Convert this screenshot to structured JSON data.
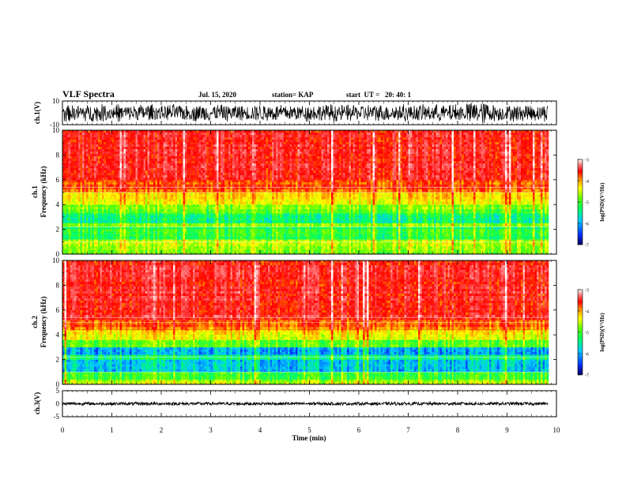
{
  "header": {
    "title": "VLF Spectra",
    "date": "Jul. 15, 2020",
    "station": "station= KAP",
    "start": "start  UT =   20: 40: 1"
  },
  "colors": {
    "colormap": [
      "#ffffff",
      "#ff7070",
      "#ff0000",
      "#ff9900",
      "#ffff00",
      "#66ff00",
      "#00ff66",
      "#00c8ff",
      "#0040ff",
      "#000080"
    ],
    "axis": "#000000"
  },
  "chart_data": [
    {
      "type": "line",
      "panel": "ch1-waveform",
      "ylabel": "ch.1(V)",
      "ylim": [
        -10,
        10
      ],
      "yticks": [
        "10",
        "-10"
      ],
      "xlim": [
        0,
        10
      ],
      "series": [
        {
          "values": "dense noise filling most of -10..10 V over 0-9.8 min"
        }
      ]
    },
    {
      "type": "heatmap",
      "panel": "ch1-spectrogram",
      "ylabel_top": "ch.1",
      "ylabel": "Frequency (kHz)",
      "ylim": [
        0,
        10
      ],
      "yticks": [
        "0",
        "2",
        "4",
        "6",
        "8",
        "10"
      ],
      "xlim": [
        0,
        10
      ],
      "data_extent_min": 9.83,
      "bands": [
        {
          "f0": 0.0,
          "f1": 0.35,
          "level": 0.55
        },
        {
          "f0": 0.35,
          "f1": 1.2,
          "level": 0.5
        },
        {
          "f0": 1.2,
          "f1": 2.2,
          "level": 0.62
        },
        {
          "f0": 2.2,
          "f1": 2.5,
          "level": 0.55
        },
        {
          "f0": 2.5,
          "f1": 3.3,
          "level": 0.68
        },
        {
          "f0": 3.3,
          "f1": 4.0,
          "level": 0.55
        },
        {
          "f0": 4.0,
          "f1": 5.0,
          "level": 0.42
        },
        {
          "f0": 5.0,
          "f1": 6.0,
          "level": 0.28
        },
        {
          "f0": 6.0,
          "f1": 10.0,
          "level": 0.2
        }
      ],
      "colorbar": {
        "label": "log(PSD)(V²/Hz)",
        "ticks": [
          "-3",
          "-4",
          "-5",
          "-6",
          "-7"
        ],
        "range": [
          -7,
          -3
        ]
      }
    },
    {
      "type": "heatmap",
      "panel": "ch2-spectrogram",
      "ylabel_top": "ch.2",
      "ylabel": "Frequency (kHz)",
      "ylim": [
        0,
        10
      ],
      "yticks": [
        "0",
        "2",
        "4",
        "6",
        "8",
        "10"
      ],
      "xlim": [
        0,
        10
      ],
      "data_extent_min": 9.83,
      "bands": [
        {
          "f0": 0.0,
          "f1": 0.4,
          "level": 0.5
        },
        {
          "f0": 0.4,
          "f1": 1.0,
          "level": 0.62
        },
        {
          "f0": 1.0,
          "f1": 2.0,
          "level": 0.78
        },
        {
          "f0": 2.0,
          "f1": 2.4,
          "level": 0.68
        },
        {
          "f0": 2.4,
          "f1": 3.0,
          "level": 0.8
        },
        {
          "f0": 3.0,
          "f1": 3.6,
          "level": 0.58
        },
        {
          "f0": 3.6,
          "f1": 4.4,
          "level": 0.44
        },
        {
          "f0": 4.4,
          "f1": 5.2,
          "level": 0.3
        },
        {
          "f0": 5.2,
          "f1": 10.0,
          "level": 0.2
        }
      ],
      "colorbar": {
        "label": "log(PSD)(V²/Hz)",
        "ticks": [
          "-3",
          "-4",
          "-5",
          "-6",
          "-7"
        ],
        "range": [
          -7,
          -3
        ]
      }
    },
    {
      "type": "line",
      "panel": "ch3-waveform",
      "ylabel": "ch.3(V)",
      "ylim": [
        -5,
        5
      ],
      "yticks": [
        "5",
        "0",
        "-5"
      ],
      "xlabel": "Time (min)",
      "xlim": [
        0,
        10
      ],
      "xticks": [
        "0",
        "1",
        "2",
        "3",
        "4",
        "5",
        "6",
        "7",
        "8",
        "9",
        "10"
      ],
      "series": [
        {
          "values": "narrow signal near 0 V spanning about -0.6..0.6 V over 0-9.8 min"
        }
      ]
    }
  ]
}
